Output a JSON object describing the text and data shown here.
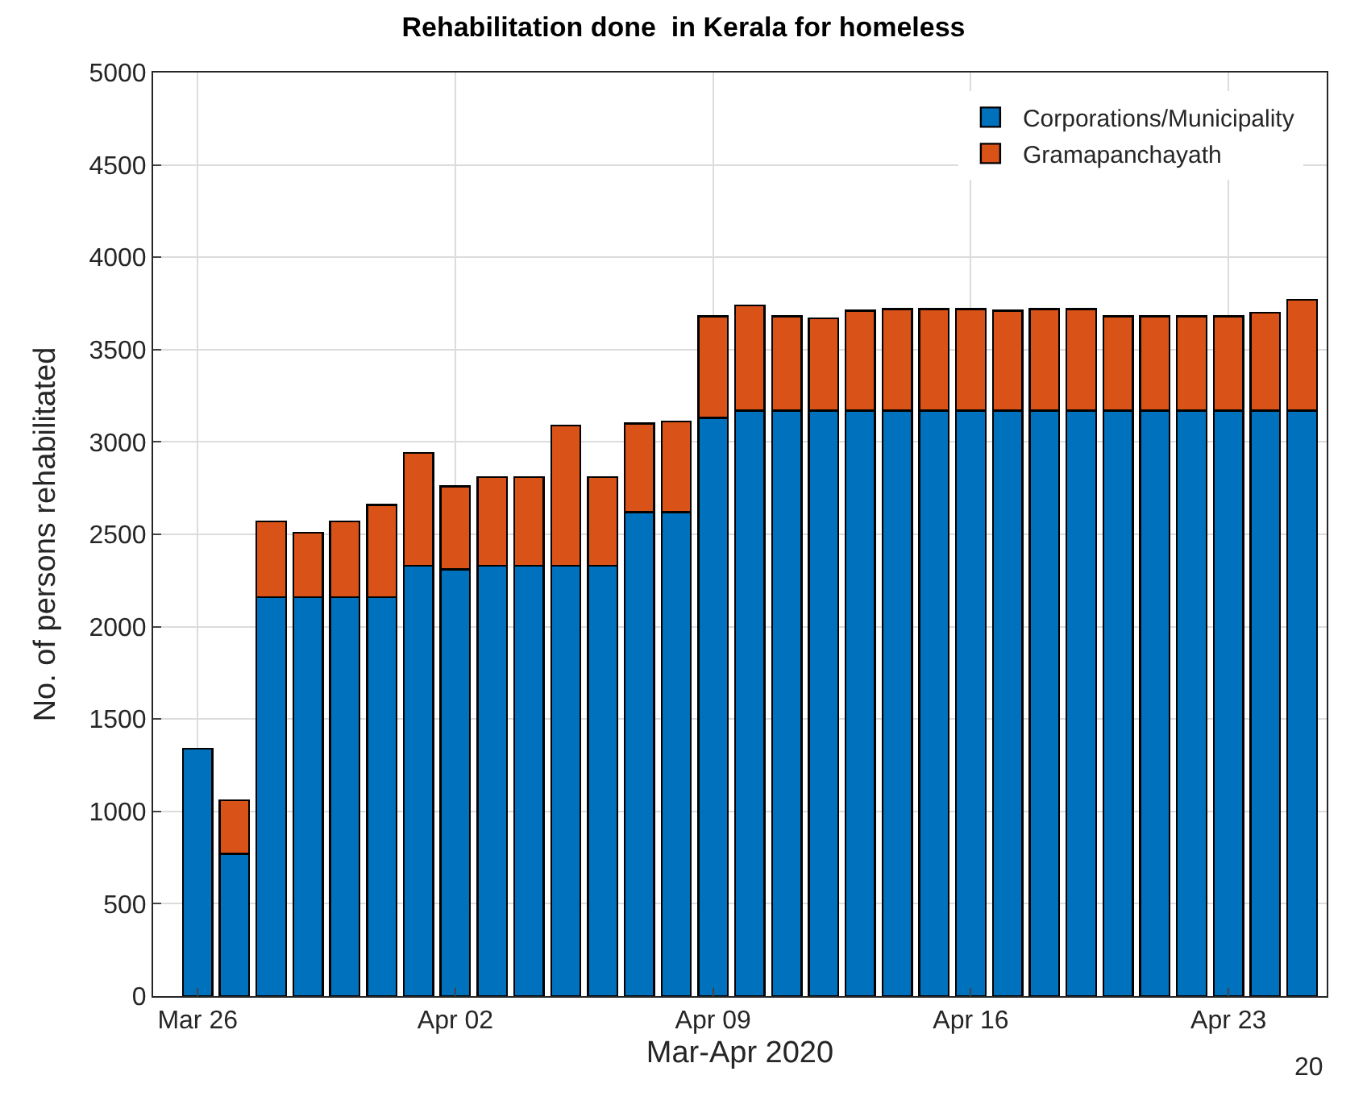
{
  "chart_data": {
    "type": "bar",
    "stacked": true,
    "title": "Rehabilitation done  in Kerala for homeless",
    "xlabel": "Mar-Apr 2020",
    "ylabel": "No. of persons rehabilitated",
    "x": [
      "2020-03-26",
      "2020-03-27",
      "2020-03-28",
      "2020-03-29",
      "2020-03-30",
      "2020-03-31",
      "2020-04-01",
      "2020-04-02",
      "2020-04-03",
      "2020-04-04",
      "2020-04-05",
      "2020-04-06",
      "2020-04-07",
      "2020-04-08",
      "2020-04-09",
      "2020-04-10",
      "2020-04-11",
      "2020-04-12",
      "2020-04-13",
      "2020-04-14",
      "2020-04-15",
      "2020-04-16",
      "2020-04-17",
      "2020-04-18",
      "2020-04-19",
      "2020-04-20",
      "2020-04-21",
      "2020-04-22",
      "2020-04-23",
      "2020-04-24",
      "2020-04-25"
    ],
    "series": [
      {
        "name": "Corporations/Municipality",
        "color": "#0072bd",
        "values": [
          1340,
          770,
          2160,
          2160,
          2160,
          2160,
          2330,
          2310,
          2330,
          2330,
          2330,
          2330,
          2620,
          2620,
          3130,
          3170,
          3170,
          3170,
          3170,
          3170,
          3170,
          3170,
          3170,
          3170,
          3170,
          3170,
          3170,
          3170,
          3170,
          3170,
          3170
        ]
      },
      {
        "name": "Gramapanchayath",
        "color": "#d95319",
        "values": [
          null,
          290,
          410,
          350,
          410,
          500,
          610,
          450,
          480,
          480,
          760,
          480,
          480,
          490,
          550,
          570,
          510,
          500,
          540,
          550,
          550,
          550,
          540,
          550,
          550,
          510,
          510,
          510,
          510,
          530,
          600
        ]
      }
    ],
    "xlim": [
      "2020-03-24T19:00",
      "2020-04-25T16:00"
    ],
    "xticks": [
      {
        "value": "2020-03-26",
        "label": "Mar 26"
      },
      {
        "value": "2020-04-02",
        "label": "Apr 02"
      },
      {
        "value": "2020-04-09",
        "label": "Apr 09"
      },
      {
        "value": "2020-04-16",
        "label": "Apr 16"
      },
      {
        "value": "2020-04-23",
        "label": "Apr 23"
      }
    ],
    "ylim": [
      0,
      5000
    ],
    "yticks": [
      0,
      500,
      1000,
      1500,
      2000,
      2500,
      3000,
      3500,
      4000,
      4500,
      5000
    ],
    "grid": true,
    "legend": "top right",
    "annotations": [
      "20"
    ]
  }
}
